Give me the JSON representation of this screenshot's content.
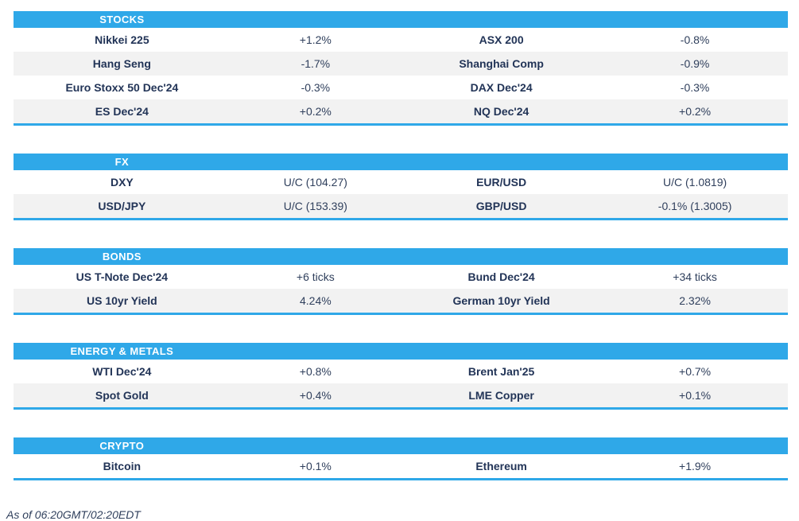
{
  "page": {
    "footer": "As of 06:20GMT/02:20EDT"
  },
  "colors": {
    "header_bg": "#2FA8E8",
    "header_text": "#FFFFFF",
    "row_bg": "#FFFFFF",
    "row_alt_bg": "#F2F2F2",
    "label_text": "#223457",
    "value_text": "#2F3F5C",
    "section_border": "#2FA8E8"
  },
  "sections": [
    {
      "title": "STOCKS",
      "slug": "stocks",
      "rows": [
        {
          "label_left": "Nikkei 225",
          "value_left": "+1.2%",
          "label_right": "ASX 200",
          "value_right": "-0.8%"
        },
        {
          "label_left": "Hang Seng",
          "value_left": "-1.7%",
          "label_right": "Shanghai Comp",
          "value_right": "-0.9%"
        },
        {
          "label_left": "Euro Stoxx 50 Dec'24",
          "value_left": "-0.3%",
          "label_right": "DAX Dec'24",
          "value_right": "-0.3%"
        },
        {
          "label_left": "ES Dec'24",
          "value_left": "+0.2%",
          "label_right": "NQ Dec'24",
          "value_right": "+0.2%"
        }
      ]
    },
    {
      "title": "FX",
      "slug": "fx",
      "rows": [
        {
          "label_left": "DXY",
          "value_left": "U/C (104.27)",
          "label_right": "EUR/USD",
          "value_right": "U/C (1.0819)"
        },
        {
          "label_left": "USD/JPY",
          "value_left": "U/C (153.39)",
          "label_right": "GBP/USD",
          "value_right": "-0.1% (1.3005)"
        }
      ]
    },
    {
      "title": "BONDS",
      "slug": "bonds",
      "rows": [
        {
          "label_left": "US T-Note Dec'24",
          "value_left": "+6 ticks",
          "label_right": "Bund Dec'24",
          "value_right": "+34 ticks"
        },
        {
          "label_left": "US 10yr Yield",
          "value_left": "4.24%",
          "label_right": "German 10yr Yield",
          "value_right": "2.32%"
        }
      ]
    },
    {
      "title": "ENERGY & METALS",
      "slug": "energy-metals",
      "rows": [
        {
          "label_left": "WTI Dec'24",
          "value_left": "+0.8%",
          "label_right": "Brent Jan'25",
          "value_right": "+0.7%"
        },
        {
          "label_left": "Spot Gold",
          "value_left": "+0.4%",
          "label_right": "LME Copper",
          "value_right": "+0.1%"
        }
      ]
    },
    {
      "title": "CRYPTO",
      "slug": "crypto",
      "rows": [
        {
          "label_left": "Bitcoin",
          "value_left": "+0.1%",
          "label_right": "Ethereum",
          "value_right": "+1.9%"
        }
      ]
    }
  ]
}
